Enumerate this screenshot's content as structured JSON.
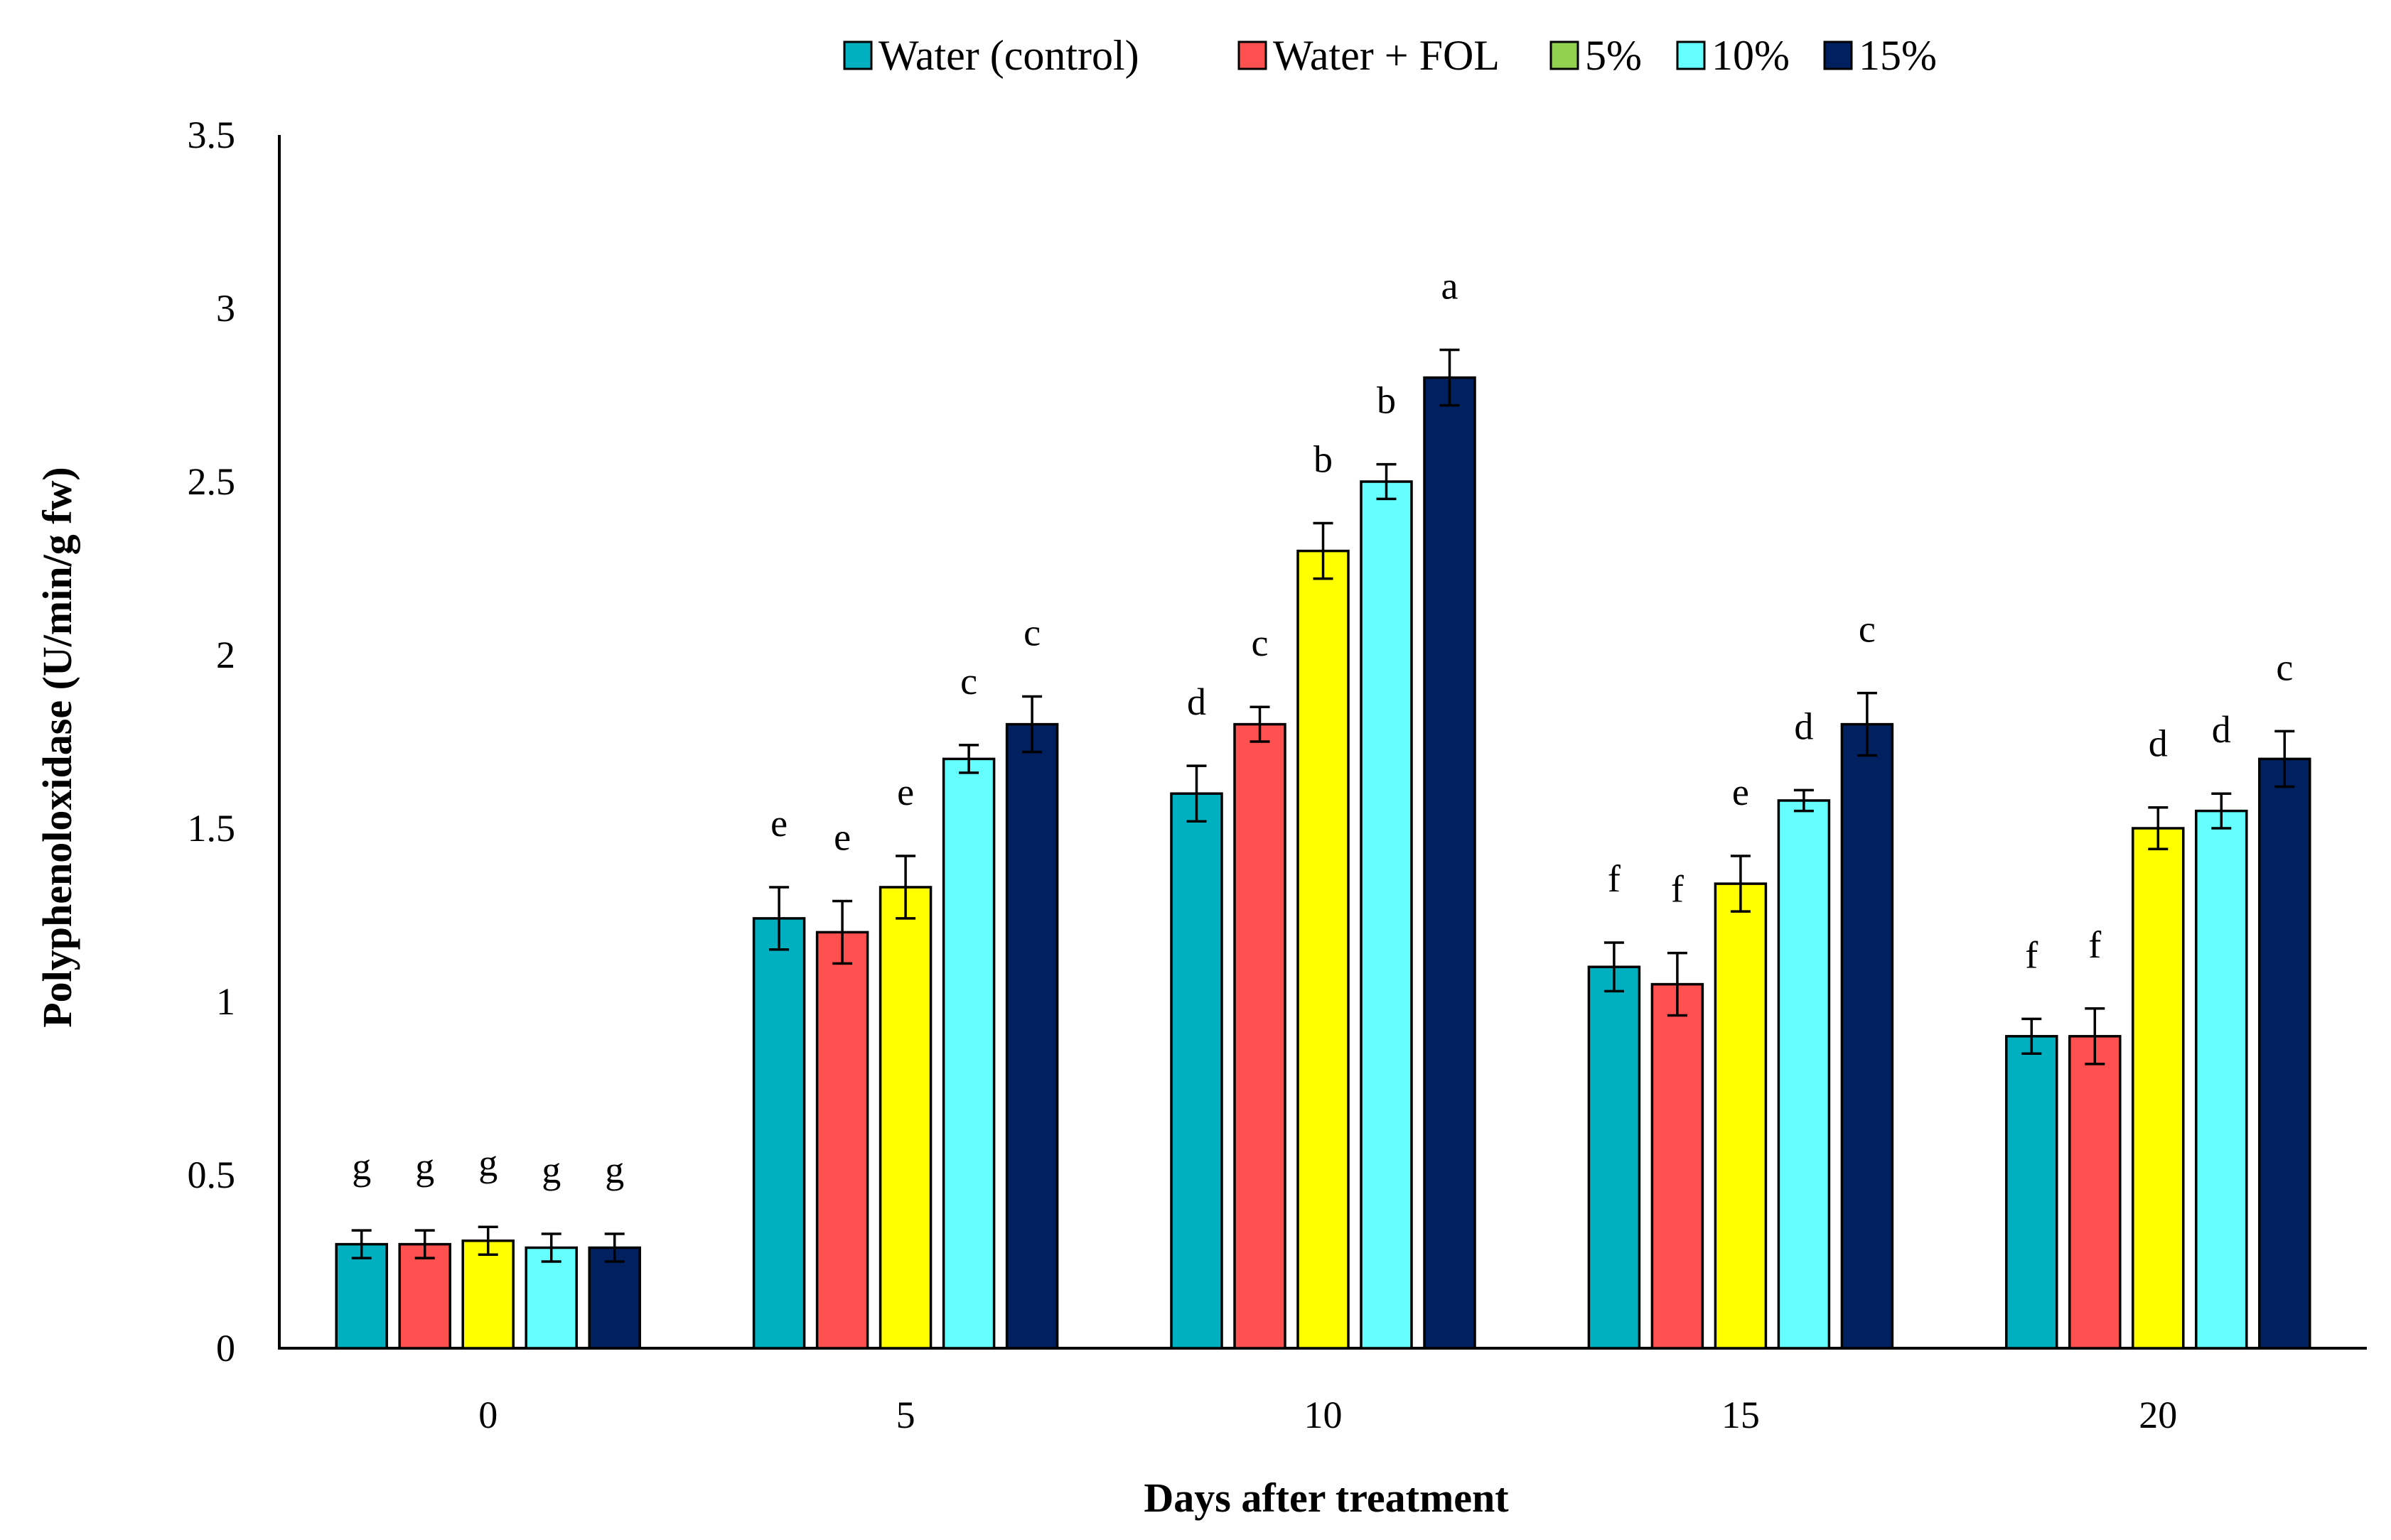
{
  "chart_data": {
    "type": "bar",
    "xlabel": "Days after treatment",
    "ylabel": "Polyphenoloxidase (U/min/g fw)",
    "categories": [
      "0",
      "5",
      "10",
      "15",
      "20"
    ],
    "ylim": [
      0,
      3.5
    ],
    "yticks": [
      "0",
      "0.5",
      "1",
      "1.5",
      "2",
      "2.5",
      "3",
      "3.5"
    ],
    "grid": false,
    "legend_position": "top",
    "series": [
      {
        "name": "Water (control)",
        "legend_color": "#00B0C0",
        "bar_color": "#00B0C0",
        "values": [
          0.3,
          1.24,
          1.6,
          1.1,
          0.9
        ],
        "errors": [
          0.04,
          0.09,
          0.08,
          0.07,
          0.05
        ],
        "letters": [
          "g",
          "e",
          "d",
          "f",
          "f"
        ]
      },
      {
        "name": "Water + FOL",
        "legend_color": "#FF5050",
        "bar_color": "#FF5050",
        "values": [
          0.3,
          1.2,
          1.8,
          1.05,
          0.9
        ],
        "errors": [
          0.04,
          0.09,
          0.05,
          0.09,
          0.08
        ],
        "letters": [
          "g",
          "e",
          "c",
          "f",
          "f"
        ]
      },
      {
        "name": "5%",
        "legend_color": "#92D050",
        "bar_color": "#FFFF00",
        "values": [
          0.31,
          1.33,
          2.3,
          1.34,
          1.5
        ],
        "errors": [
          0.04,
          0.09,
          0.08,
          0.08,
          0.06
        ],
        "letters": [
          "g",
          "e",
          "b",
          "e",
          "d"
        ]
      },
      {
        "name": "10%",
        "legend_color": "#66FFFF",
        "bar_color": "#66FFFF",
        "values": [
          0.29,
          1.7,
          2.5,
          1.58,
          1.55
        ],
        "errors": [
          0.04,
          0.04,
          0.05,
          0.03,
          0.05
        ],
        "letters": [
          "g",
          "c",
          "b",
          "d",
          "d"
        ]
      },
      {
        "name": "15%",
        "legend_color": "#002060",
        "bar_color": "#002060",
        "values": [
          0.29,
          1.8,
          2.8,
          1.8,
          1.7
        ],
        "errors": [
          0.04,
          0.08,
          0.08,
          0.09,
          0.08
        ],
        "letters": [
          "g",
          "c",
          "a",
          "c",
          "c"
        ]
      }
    ]
  }
}
